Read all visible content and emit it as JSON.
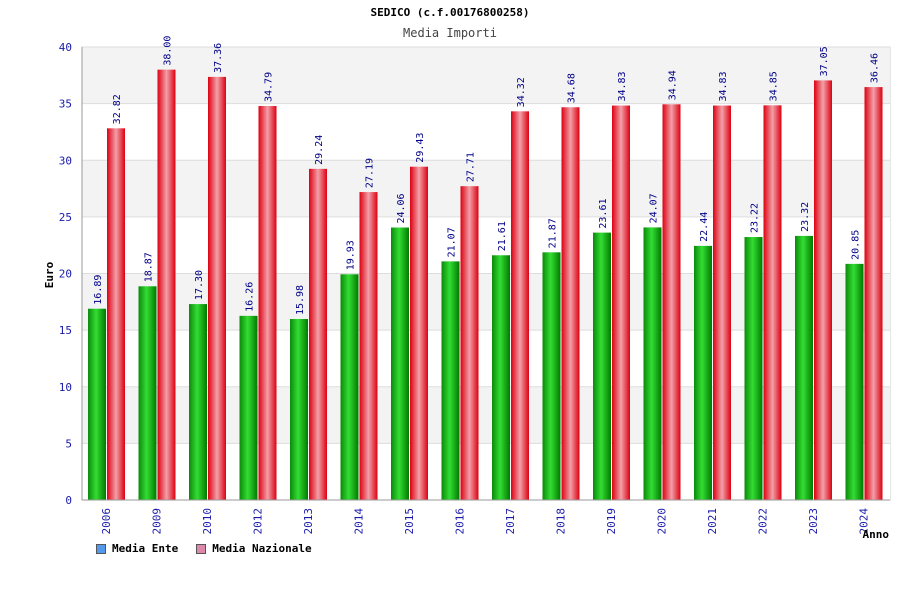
{
  "chart_data": {
    "type": "bar",
    "title": "SEDICO (c.f.00176800258)",
    "subtitle": "Media Importi",
    "xlabel": "Anno",
    "ylabel": "Euro",
    "ylim": [
      0,
      40
    ],
    "yticks": [
      0,
      5,
      10,
      15,
      20,
      25,
      30,
      35,
      40
    ],
    "ytick_labels": [
      "0",
      "5",
      "10",
      "15",
      "20",
      "25",
      "30",
      "35",
      "40"
    ],
    "categories": [
      "2006",
      "2009",
      "2010",
      "2012",
      "2013",
      "2014",
      "2015",
      "2016",
      "2017",
      "2018",
      "2019",
      "2020",
      "2021",
      "2022",
      "2023",
      "2024"
    ],
    "series": [
      {
        "name": "Media Ente",
        "values": [
          16.89,
          18.87,
          17.3,
          16.26,
          15.98,
          19.93,
          24.06,
          21.07,
          21.61,
          21.87,
          23.61,
          24.07,
          22.44,
          23.22,
          23.32,
          20.85
        ],
        "labels": [
          "16.89",
          "18.87",
          "17.30",
          "16.26",
          "15.98",
          "19.93",
          "24.06",
          "21.07",
          "21.61",
          "21.87",
          "23.61",
          "24.07",
          "22.44",
          "23.22",
          "23.32",
          "20.85"
        ],
        "color": "#22bb22"
      },
      {
        "name": "Media Nazionale",
        "values": [
          32.82,
          38.0,
          37.36,
          34.79,
          29.24,
          27.19,
          29.43,
          27.71,
          34.32,
          34.68,
          34.83,
          34.94,
          34.83,
          34.85,
          37.05,
          36.46
        ],
        "labels": [
          "32.82",
          "38.00",
          "37.36",
          "34.79",
          "29.24",
          "27.19",
          "29.43",
          "27.71",
          "34.32",
          "34.68",
          "34.83",
          "34.94",
          "34.83",
          "34.85",
          "37.05",
          "36.46"
        ],
        "color": "#ee2233"
      }
    ],
    "legend": [
      {
        "label": "Media Ente",
        "color": "#5599ee"
      },
      {
        "label": "Media Nazionale",
        "color": "#dd88aa"
      }
    ],
    "grid": true,
    "legend_position": "bottom-left"
  }
}
